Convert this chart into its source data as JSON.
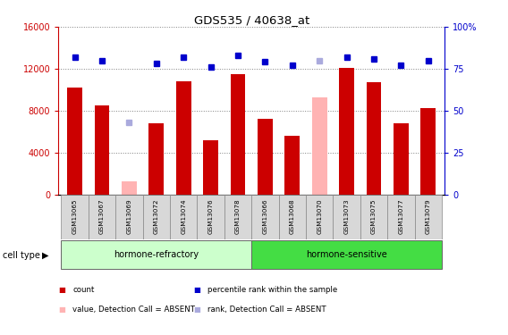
{
  "title": "GDS535 / 40638_at",
  "samples": [
    "GSM13065",
    "GSM13067",
    "GSM13069",
    "GSM13072",
    "GSM13074",
    "GSM13076",
    "GSM13078",
    "GSM13066",
    "GSM13068",
    "GSM13070",
    "GSM13073",
    "GSM13075",
    "GSM13077",
    "GSM13079"
  ],
  "bar_values": [
    10200,
    8500,
    null,
    6800,
    10800,
    5200,
    11500,
    7200,
    5600,
    null,
    12100,
    10700,
    6800,
    8200
  ],
  "absent_bar_values": [
    null,
    null,
    1200,
    null,
    null,
    null,
    null,
    null,
    null,
    9300,
    null,
    null,
    null,
    null
  ],
  "rank_values": [
    82,
    80,
    null,
    78,
    82,
    76,
    83,
    79,
    77,
    null,
    82,
    81,
    77,
    80
  ],
  "absent_rank_values": [
    null,
    null,
    43,
    null,
    null,
    null,
    null,
    null,
    null,
    80,
    null,
    null,
    null,
    null
  ],
  "bar_color": "#cc0000",
  "absent_bar_color": "#ffb3b3",
  "rank_color": "#0000cc",
  "absent_rank_color": "#aaaadd",
  "ylim_left": [
    0,
    16000
  ],
  "ylim_right": [
    0,
    100
  ],
  "yticks_left": [
    0,
    4000,
    8000,
    12000,
    16000
  ],
  "ytick_labels_left": [
    "0",
    "4000",
    "8000",
    "12000",
    "16000"
  ],
  "yticks_right": [
    0,
    25,
    50,
    75,
    100
  ],
  "ytick_labels_right": [
    "0",
    "25",
    "50",
    "75",
    "100%"
  ],
  "group1_label": "hormone-refractory",
  "group1_indices": [
    0,
    1,
    2,
    3,
    4,
    5,
    6
  ],
  "group2_label": "hormone-sensitive",
  "group2_indices": [
    7,
    8,
    9,
    10,
    11,
    12,
    13
  ],
  "group1_color": "#ccffcc",
  "group2_color": "#44dd44",
  "cell_type_label": "cell type",
  "bg_color": "#ffffff",
  "plot_bg": "#ffffff",
  "legend_items": [
    {
      "label": "count",
      "color": "#cc0000",
      "type": "square"
    },
    {
      "label": "percentile rank within the sample",
      "color": "#0000cc",
      "type": "square"
    },
    {
      "label": "value, Detection Call = ABSENT",
      "color": "#ffb3b3",
      "type": "square"
    },
    {
      "label": "rank, Detection Call = ABSENT",
      "color": "#aaaadd",
      "type": "square"
    }
  ]
}
